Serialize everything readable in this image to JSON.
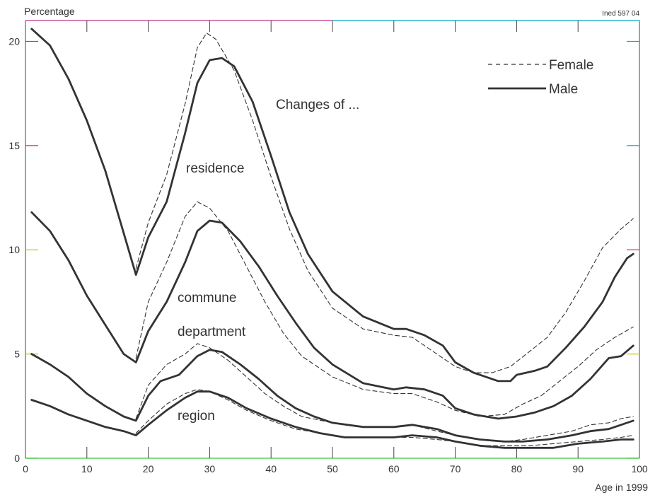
{
  "chart_data": {
    "type": "line",
    "ylabel": "Percentage",
    "xlabel": "Age in 1999",
    "corner_note": "Ined 597 04",
    "annotation": "Changes of ...",
    "xlim": [
      0,
      100
    ],
    "ylim": [
      0,
      21
    ],
    "x_ticks": [
      0,
      10,
      20,
      30,
      40,
      50,
      60,
      70,
      80,
      90,
      100
    ],
    "y_ticks": [
      0,
      5,
      10,
      15,
      20
    ],
    "grid": false,
    "legend": {
      "position": "top-right",
      "entries": [
        {
          "label": "Female",
          "style": "dashed"
        },
        {
          "label": "Male",
          "style": "solid"
        }
      ]
    },
    "colors": {
      "line": "#333333",
      "axis_cyan": "#00a8d0",
      "axis_magenta": "#c0308a",
      "axis_yellow": "#c8c800",
      "axis_green": "#3cc33c"
    },
    "groups": [
      {
        "label": "residence",
        "series": [
          {
            "name": "Male",
            "style": "solid",
            "points": [
              [
                1,
                20.6
              ],
              [
                4,
                19.8
              ],
              [
                7,
                18.2
              ],
              [
                10,
                16.2
              ],
              [
                13,
                13.8
              ],
              [
                16,
                10.8
              ],
              [
                18,
                8.8
              ],
              [
                20,
                10.6
              ],
              [
                23,
                12.3
              ],
              [
                26,
                15.6
              ],
              [
                28,
                18.0
              ],
              [
                30,
                19.1
              ],
              [
                32,
                19.2
              ],
              [
                34,
                18.8
              ],
              [
                37,
                17.1
              ],
              [
                40,
                14.5
              ],
              [
                43,
                11.8
              ],
              [
                46,
                9.8
              ],
              [
                50,
                8.0
              ],
              [
                55,
                6.8
              ],
              [
                60,
                6.2
              ],
              [
                62,
                6.2
              ],
              [
                65,
                5.9
              ],
              [
                68,
                5.4
              ],
              [
                70,
                4.6
              ],
              [
                73,
                4.1
              ],
              [
                77,
                3.7
              ],
              [
                79,
                3.7
              ],
              [
                80,
                4.0
              ],
              [
                83,
                4.2
              ],
              [
                85,
                4.4
              ],
              [
                88,
                5.3
              ],
              [
                91,
                6.3
              ],
              [
                94,
                7.5
              ],
              [
                96,
                8.7
              ],
              [
                98,
                9.6
              ],
              [
                99,
                9.8
              ]
            ]
          },
          {
            "name": "Female",
            "style": "dashed",
            "points": [
              [
                18,
                9.1
              ],
              [
                20,
                11.3
              ],
              [
                23,
                13.6
              ],
              [
                26,
                17.0
              ],
              [
                28,
                19.7
              ],
              [
                29.5,
                20.4
              ],
              [
                31,
                20.1
              ],
              [
                34,
                18.6
              ],
              [
                37,
                16.2
              ],
              [
                40,
                13.5
              ],
              [
                43,
                11.0
              ],
              [
                46,
                9.0
              ],
              [
                50,
                7.2
              ],
              [
                55,
                6.2
              ],
              [
                60,
                5.9
              ],
              [
                63,
                5.8
              ],
              [
                67,
                5.0
              ],
              [
                70,
                4.4
              ],
              [
                73,
                4.1
              ],
              [
                76,
                4.1
              ],
              [
                79,
                4.4
              ],
              [
                82,
                5.1
              ],
              [
                85,
                5.8
              ],
              [
                88,
                7.0
              ],
              [
                91,
                8.5
              ],
              [
                94,
                10.1
              ],
              [
                97,
                11.0
              ],
              [
                99,
                11.5
              ]
            ]
          }
        ]
      },
      {
        "label": "commune",
        "series": [
          {
            "name": "Male",
            "style": "solid",
            "points": [
              [
                1,
                11.8
              ],
              [
                4,
                10.9
              ],
              [
                7,
                9.5
              ],
              [
                10,
                7.8
              ],
              [
                13,
                6.4
              ],
              [
                16,
                5.0
              ],
              [
                18,
                4.6
              ],
              [
                20,
                6.1
              ],
              [
                23,
                7.5
              ],
              [
                26,
                9.4
              ],
              [
                28,
                10.9
              ],
              [
                30,
                11.4
              ],
              [
                32,
                11.3
              ],
              [
                35,
                10.4
              ],
              [
                38,
                9.2
              ],
              [
                41,
                7.8
              ],
              [
                44,
                6.5
              ],
              [
                47,
                5.3
              ],
              [
                50,
                4.5
              ],
              [
                55,
                3.6
              ],
              [
                60,
                3.3
              ],
              [
                62,
                3.4
              ],
              [
                65,
                3.3
              ],
              [
                68,
                3.0
              ],
              [
                70,
                2.4
              ],
              [
                73,
                2.1
              ],
              [
                77,
                1.9
              ],
              [
                80,
                2.0
              ],
              [
                83,
                2.2
              ],
              [
                86,
                2.5
              ],
              [
                89,
                3.0
              ],
              [
                92,
                3.8
              ],
              [
                95,
                4.8
              ],
              [
                97,
                4.9
              ],
              [
                99,
                5.4
              ]
            ]
          },
          {
            "name": "Female",
            "style": "dashed",
            "points": [
              [
                18,
                4.8
              ],
              [
                20,
                7.5
              ],
              [
                23,
                9.4
              ],
              [
                26,
                11.6
              ],
              [
                28,
                12.3
              ],
              [
                30,
                12.0
              ],
              [
                33,
                10.9
              ],
              [
                36,
                9.2
              ],
              [
                39,
                7.5
              ],
              [
                42,
                6.0
              ],
              [
                45,
                4.9
              ],
              [
                50,
                3.9
              ],
              [
                55,
                3.3
              ],
              [
                60,
                3.1
              ],
              [
                63,
                3.1
              ],
              [
                67,
                2.7
              ],
              [
                70,
                2.3
              ],
              [
                74,
                2.0
              ],
              [
                78,
                2.1
              ],
              [
                81,
                2.6
              ],
              [
                84,
                3.0
              ],
              [
                87,
                3.7
              ],
              [
                90,
                4.4
              ],
              [
                93,
                5.2
              ],
              [
                96,
                5.8
              ],
              [
                99,
                6.3
              ]
            ]
          }
        ]
      },
      {
        "label": "department",
        "series": [
          {
            "name": "Male",
            "style": "solid",
            "points": [
              [
                1,
                5.0
              ],
              [
                4,
                4.5
              ],
              [
                7,
                3.9
              ],
              [
                10,
                3.1
              ],
              [
                13,
                2.5
              ],
              [
                16,
                2.0
              ],
              [
                18,
                1.8
              ],
              [
                20,
                3.0
              ],
              [
                22,
                3.7
              ],
              [
                25,
                4.0
              ],
              [
                28,
                4.9
              ],
              [
                30,
                5.2
              ],
              [
                32,
                5.1
              ],
              [
                35,
                4.5
              ],
              [
                38,
                3.8
              ],
              [
                41,
                3.0
              ],
              [
                44,
                2.4
              ],
              [
                47,
                2.0
              ],
              [
                50,
                1.7
              ],
              [
                55,
                1.5
              ],
              [
                60,
                1.5
              ],
              [
                63,
                1.6
              ],
              [
                67,
                1.4
              ],
              [
                70,
                1.1
              ],
              [
                74,
                0.9
              ],
              [
                78,
                0.8
              ],
              [
                81,
                0.8
              ],
              [
                85,
                0.9
              ],
              [
                89,
                1.1
              ],
              [
                92,
                1.3
              ],
              [
                95,
                1.4
              ],
              [
                97,
                1.6
              ],
              [
                99,
                1.8
              ]
            ]
          },
          {
            "name": "Female",
            "style": "dashed",
            "points": [
              [
                18,
                1.9
              ],
              [
                20,
                3.5
              ],
              [
                23,
                4.5
              ],
              [
                26,
                5.0
              ],
              [
                28,
                5.5
              ],
              [
                30,
                5.3
              ],
              [
                33,
                4.7
              ],
              [
                36,
                3.9
              ],
              [
                39,
                3.1
              ],
              [
                42,
                2.5
              ],
              [
                45,
                2.0
              ],
              [
                50,
                1.7
              ],
              [
                55,
                1.5
              ],
              [
                60,
                1.5
              ],
              [
                63,
                1.6
              ],
              [
                67,
                1.3
              ],
              [
                70,
                1.1
              ],
              [
                74,
                0.9
              ],
              [
                78,
                0.8
              ],
              [
                81,
                0.9
              ],
              [
                85,
                1.1
              ],
              [
                89,
                1.3
              ],
              [
                92,
                1.6
              ],
              [
                95,
                1.7
              ],
              [
                97,
                1.9
              ],
              [
                99,
                2.0
              ]
            ]
          }
        ]
      },
      {
        "label": "region",
        "series": [
          {
            "name": "Male",
            "style": "solid",
            "points": [
              [
                1,
                2.8
              ],
              [
                4,
                2.5
              ],
              [
                7,
                2.1
              ],
              [
                10,
                1.8
              ],
              [
                13,
                1.5
              ],
              [
                16,
                1.3
              ],
              [
                18,
                1.1
              ],
              [
                20,
                1.6
              ],
              [
                23,
                2.3
              ],
              [
                26,
                2.9
              ],
              [
                28,
                3.2
              ],
              [
                30,
                3.2
              ],
              [
                33,
                2.9
              ],
              [
                36,
                2.4
              ],
              [
                40,
                1.9
              ],
              [
                44,
                1.5
              ],
              [
                48,
                1.2
              ],
              [
                52,
                1.0
              ],
              [
                56,
                1.0
              ],
              [
                60,
                1.0
              ],
              [
                63,
                1.1
              ],
              [
                67,
                1.0
              ],
              [
                70,
                0.8
              ],
              [
                74,
                0.6
              ],
              [
                78,
                0.5
              ],
              [
                82,
                0.5
              ],
              [
                86,
                0.5
              ],
              [
                90,
                0.7
              ],
              [
                94,
                0.8
              ],
              [
                97,
                0.9
              ],
              [
                99,
                0.9
              ]
            ]
          },
          {
            "name": "Female",
            "style": "dashed",
            "points": [
              [
                18,
                1.2
              ],
              [
                20,
                1.8
              ],
              [
                23,
                2.6
              ],
              [
                26,
                3.1
              ],
              [
                28,
                3.3
              ],
              [
                30,
                3.2
              ],
              [
                33,
                2.8
              ],
              [
                36,
                2.3
              ],
              [
                40,
                1.8
              ],
              [
                44,
                1.4
              ],
              [
                48,
                1.2
              ],
              [
                52,
                1.0
              ],
              [
                56,
                1.0
              ],
              [
                60,
                1.0
              ],
              [
                63,
                1.0
              ],
              [
                67,
                0.9
              ],
              [
                70,
                0.8
              ],
              [
                74,
                0.6
              ],
              [
                78,
                0.6
              ],
              [
                82,
                0.6
              ],
              [
                86,
                0.7
              ],
              [
                90,
                0.8
              ],
              [
                94,
                0.9
              ],
              [
                97,
                1.0
              ],
              [
                99,
                1.1
              ]
            ]
          }
        ]
      }
    ]
  }
}
